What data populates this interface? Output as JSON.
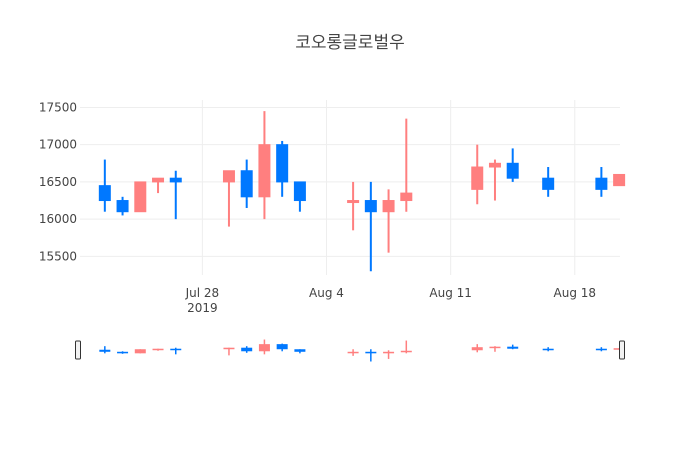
{
  "chart_data": {
    "type": "candlestick",
    "title": "코오롱글로벌우",
    "ylim": [
      15250,
      17600
    ],
    "y_ticks": [
      15500,
      16000,
      16500,
      17000,
      17500
    ],
    "x_ticks": [
      {
        "date": "2019-07-28",
        "label": "Jul 28",
        "sublabel": "2019"
      },
      {
        "date": "2019-08-04",
        "label": "Aug 4",
        "sublabel": ""
      },
      {
        "date": "2019-08-11",
        "label": "Aug 11",
        "sublabel": ""
      },
      {
        "date": "2019-08-18",
        "label": "Aug 18",
        "sublabel": ""
      }
    ],
    "x_range": [
      "2019-07-21",
      "2019-08-20"
    ],
    "increasing_color": "#ff7f7f",
    "decreasing_color": "#0078ff",
    "grid": true,
    "range_slider": true,
    "candles": [
      {
        "date": "2019-07-22",
        "open": 16450,
        "high": 16800,
        "low": 16100,
        "close": 16250
      },
      {
        "date": "2019-07-23",
        "open": 16250,
        "high": 16300,
        "low": 16050,
        "close": 16100
      },
      {
        "date": "2019-07-24",
        "open": 16100,
        "high": 16500,
        "low": 16100,
        "close": 16500
      },
      {
        "date": "2019-07-25",
        "open": 16500,
        "high": 16550,
        "low": 16350,
        "close": 16550
      },
      {
        "date": "2019-07-26",
        "open": 16550,
        "high": 16650,
        "low": 16000,
        "close": 16500
      },
      {
        "date": "2019-07-29",
        "open": 16500,
        "high": 16650,
        "low": 15900,
        "close": 16650
      },
      {
        "date": "2019-07-30",
        "open": 16650,
        "high": 16800,
        "low": 16150,
        "close": 16300
      },
      {
        "date": "2019-07-31",
        "open": 16300,
        "high": 17450,
        "low": 16000,
        "close": 17000
      },
      {
        "date": "2019-08-01",
        "open": 17000,
        "high": 17050,
        "low": 16300,
        "close": 16500
      },
      {
        "date": "2019-08-02",
        "open": 16500,
        "high": 16500,
        "low": 16100,
        "close": 16250
      },
      {
        "date": "2019-08-05",
        "open": 16250,
        "high": 16500,
        "low": 15850,
        "close": 16250
      },
      {
        "date": "2019-08-06",
        "open": 16250,
        "high": 16500,
        "low": 15300,
        "close": 16100
      },
      {
        "date": "2019-08-07",
        "open": 16100,
        "high": 16400,
        "low": 15550,
        "close": 16250
      },
      {
        "date": "2019-08-08",
        "open": 16250,
        "high": 17350,
        "low": 16100,
        "close": 16350
      },
      {
        "date": "2019-08-12",
        "open": 16400,
        "high": 17000,
        "low": 16200,
        "close": 16700
      },
      {
        "date": "2019-08-13",
        "open": 16700,
        "high": 16800,
        "low": 16250,
        "close": 16750
      },
      {
        "date": "2019-08-14",
        "open": 16750,
        "high": 16950,
        "low": 16500,
        "close": 16550
      },
      {
        "date": "2019-08-16",
        "open": 16550,
        "high": 16700,
        "low": 16300,
        "close": 16400
      },
      {
        "date": "2019-08-19",
        "open": 16550,
        "high": 16700,
        "low": 16300,
        "close": 16400
      },
      {
        "date": "2019-08-20",
        "open": 16450,
        "high": 16600,
        "low": 16450,
        "close": 16600
      }
    ]
  }
}
